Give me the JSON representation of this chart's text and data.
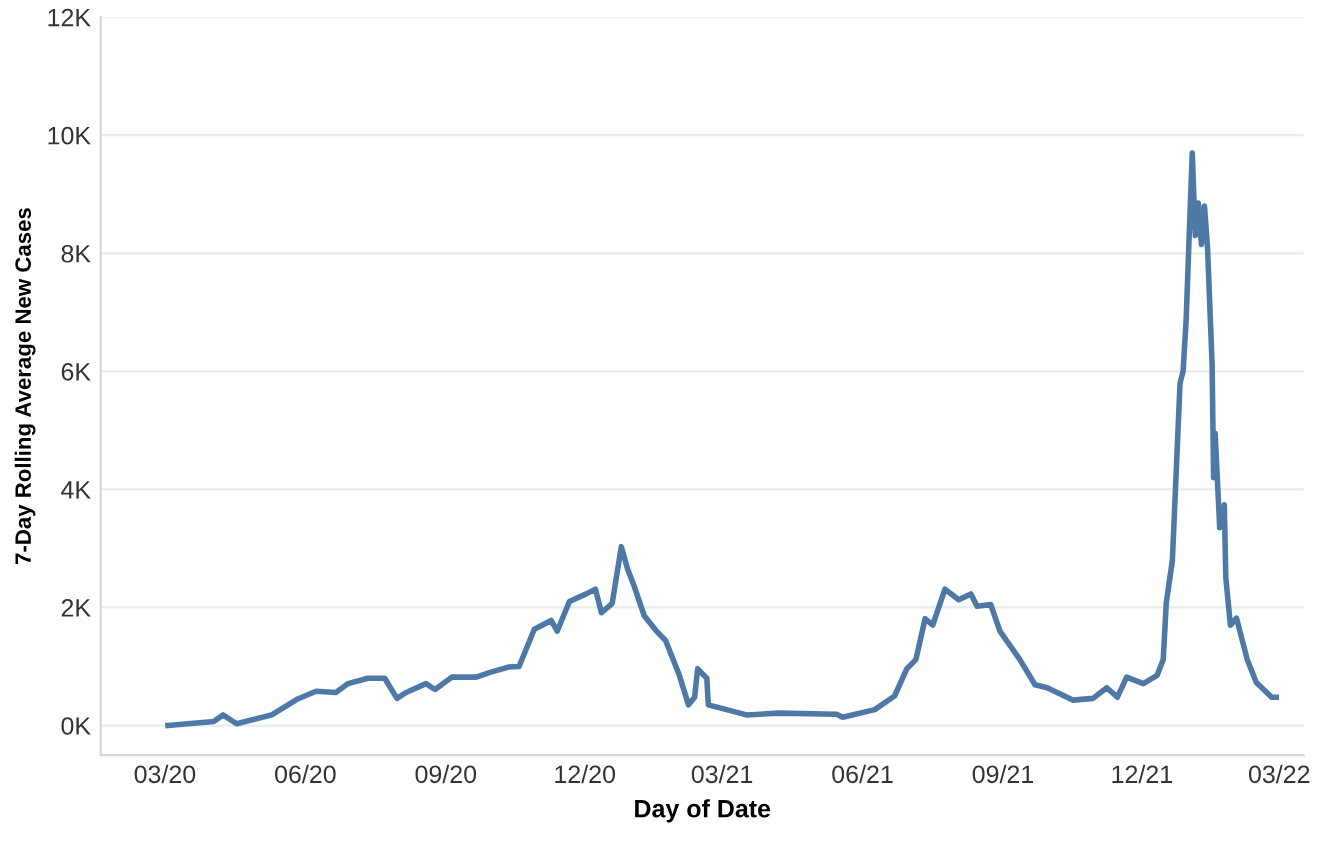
{
  "chart_data": {
    "type": "line",
    "xlabel": "Day of Date",
    "ylabel": "7-Day Rolling Average New Cases",
    "x": [
      "2020-03-03",
      "2020-04-02",
      "2020-04-08",
      "2020-04-17",
      "2020-05-10",
      "2020-05-27",
      "2020-06-08",
      "2020-06-21",
      "2020-06-29",
      "2020-07-12",
      "2020-07-23",
      "2020-07-31",
      "2020-08-06",
      "2020-08-19",
      "2020-08-25",
      "2020-09-05",
      "2020-09-21",
      "2020-09-30",
      "2020-10-12",
      "2020-10-19",
      "2020-10-29",
      "2020-11-09",
      "2020-11-13",
      "2020-11-21",
      "2020-12-02",
      "2020-12-08",
      "2020-12-12",
      "2020-12-19",
      "2020-12-25",
      "2020-12-29",
      "2021-01-02",
      "2021-01-09",
      "2021-01-17",
      "2021-01-23",
      "2021-02-01",
      "2021-02-07",
      "2021-02-11",
      "2021-02-13",
      "2021-02-19",
      "2021-02-20",
      "2021-03-17",
      "2021-04-07",
      "2021-05-15",
      "2021-05-19",
      "2021-06-09",
      "2021-06-22",
      "2021-06-30",
      "2021-07-06",
      "2021-07-12",
      "2021-07-17",
      "2021-07-25",
      "2021-08-03",
      "2021-08-11",
      "2021-08-15",
      "2021-08-24",
      "2021-08-30",
      "2021-09-12",
      "2021-09-22",
      "2021-09-30",
      "2021-10-17",
      "2021-10-30",
      "2021-11-08",
      "2021-11-15",
      "2021-11-21",
      "2021-12-02",
      "2021-12-11",
      "2021-12-15",
      "2021-12-17",
      "2021-12-21",
      "2021-12-26",
      "2021-12-28",
      "2021-12-30",
      "2022-01-01",
      "2022-01-03",
      "2022-01-05",
      "2022-01-07",
      "2022-01-09",
      "2022-01-11",
      "2022-01-13",
      "2022-01-16",
      "2022-01-17",
      "2022-01-18",
      "2022-01-21",
      "2022-01-24",
      "2022-01-25",
      "2022-01-28",
      "2022-02-01",
      "2022-02-08",
      "2022-02-14",
      "2022-02-24",
      "2022-02-27"
    ],
    "series": [
      {
        "color": "#4e79a7",
        "values": [
          0,
          70,
          180,
          30,
          180,
          450,
          580,
          560,
          710,
          800,
          800,
          460,
          560,
          710,
          610,
          820,
          820,
          900,
          990,
          1000,
          1630,
          1780,
          1600,
          2100,
          2230,
          2310,
          1910,
          2070,
          3030,
          2660,
          2390,
          1860,
          1600,
          1440,
          850,
          350,
          480,
          960,
          800,
          350,
          180,
          210,
          190,
          140,
          270,
          500,
          960,
          1120,
          1810,
          1700,
          2310,
          2130,
          2230,
          2020,
          2050,
          1600,
          1120,
          690,
          640,
          430,
          460,
          640,
          480,
          820,
          710,
          850,
          1120,
          2080,
          2800,
          5800,
          6000,
          6870,
          8300,
          9700,
          8300,
          8850,
          8150,
          8800,
          8100,
          6130,
          4200,
          4950,
          3350,
          3740,
          2500,
          1700,
          1820,
          1120,
          730,
          480,
          480
        ]
      }
    ],
    "xlim": [
      "2020-01-19",
      "2022-03-17"
    ],
    "xticks": [
      {
        "value": "2020-03-01",
        "label": "03/20"
      },
      {
        "value": "2020-06-01",
        "label": "06/20"
      },
      {
        "value": "2020-09-01",
        "label": "09/20"
      },
      {
        "value": "2020-12-01",
        "label": "12/20"
      },
      {
        "value": "2021-03-01",
        "label": "03/21"
      },
      {
        "value": "2021-06-01",
        "label": "06/21"
      },
      {
        "value": "2021-09-01",
        "label": "09/21"
      },
      {
        "value": "2021-12-01",
        "label": "12/21"
      },
      {
        "value": "2022-03-01",
        "label": "03/22"
      }
    ],
    "ylim": [
      -500,
      12000
    ],
    "yticks": [
      {
        "value": 0,
        "label": "0K"
      },
      {
        "value": 2000,
        "label": "2K"
      },
      {
        "value": 4000,
        "label": "4K"
      },
      {
        "value": 6000,
        "label": "6K"
      },
      {
        "value": 8000,
        "label": "8K"
      },
      {
        "value": 10000,
        "label": "10K"
      },
      {
        "value": 12000,
        "label": "12K"
      }
    ],
    "grid": "y",
    "marker": "none",
    "line_style": "solid"
  }
}
